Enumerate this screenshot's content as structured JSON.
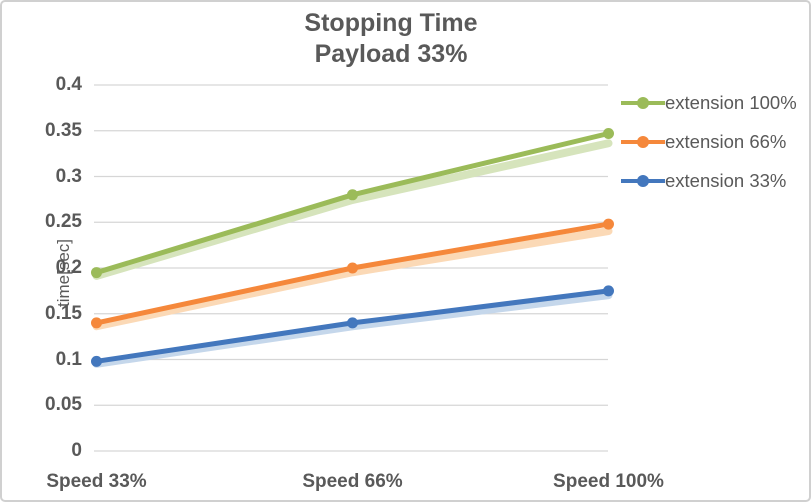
{
  "chart_data": {
    "type": "line",
    "title_lines": [
      "Stopping Time",
      "Payload 33%"
    ],
    "title": "Stopping Time Payload 33%",
    "xlabel": "",
    "ylabel": "time[sec]",
    "ylim": [
      0,
      0.4
    ],
    "ytick_step": 0.05,
    "y_tick_labels": [
      "0.4",
      "0.35",
      "0.3",
      "0.25",
      "0.2",
      "0.15",
      "0.1",
      "0.05",
      "0"
    ],
    "categories": [
      "Speed 33%",
      "Speed 66%",
      "Speed 100%"
    ],
    "series": [
      {
        "name": "extension 100%",
        "color": "#9bbb59",
        "band_color": "#d6e4bc",
        "values": [
          0.195,
          0.28,
          0.347
        ],
        "band_values": [
          0.193,
          0.276,
          0.338
        ]
      },
      {
        "name": "extension 66%",
        "color": "#f5883b",
        "band_color": "#fbd9b6",
        "values": [
          0.14,
          0.2,
          0.248
        ],
        "band_values": [
          0.138,
          0.197,
          0.242
        ]
      },
      {
        "name": "extension 33%",
        "color": "#4377bd",
        "band_color": "#c5d7eb",
        "values": [
          0.098,
          0.14,
          0.175
        ],
        "band_values": [
          0.097,
          0.138,
          0.172
        ]
      }
    ],
    "legend_position": "right",
    "grid": true,
    "grid_color": "#d6d6d6",
    "text_color": "#595959"
  }
}
